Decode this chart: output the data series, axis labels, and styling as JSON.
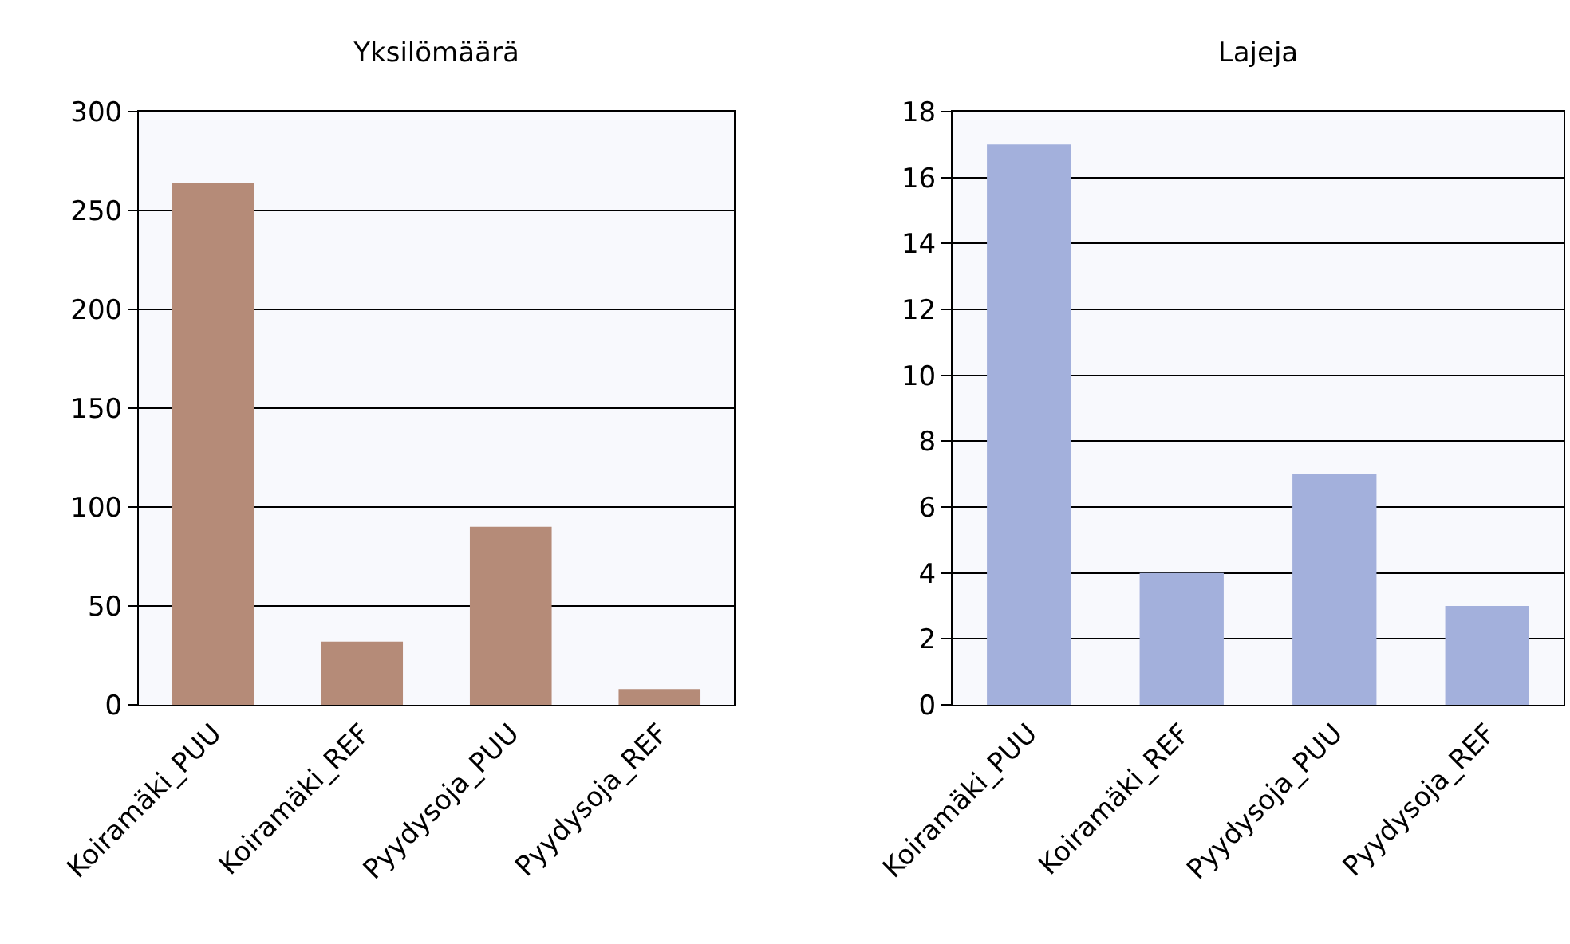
{
  "chart_data": [
    {
      "type": "bar",
      "title": "Yksilömäärä",
      "categories": [
        "Koiramäki_PUU",
        "Koiramäki_REF",
        "Pyydysoja_PUU",
        "Pyydysoja_REF"
      ],
      "values": [
        264,
        32,
        90,
        8
      ],
      "color": "#b58b78",
      "ylim": [
        0,
        300
      ],
      "yticks": [
        0,
        50,
        100,
        150,
        200,
        250,
        300
      ],
      "grid": "y"
    },
    {
      "type": "bar",
      "title": "Lajeja",
      "categories": [
        "Koiramäki_PUU",
        "Koiramäki_REF",
        "Pyydysoja_PUU",
        "Pyydysoja_REF"
      ],
      "values": [
        17,
        4,
        7,
        3
      ],
      "color": "#a3b0dc",
      "ylim": [
        0,
        18
      ],
      "yticks": [
        0,
        2,
        4,
        6,
        8,
        10,
        12,
        14,
        16,
        18
      ],
      "grid": "y"
    }
  ]
}
